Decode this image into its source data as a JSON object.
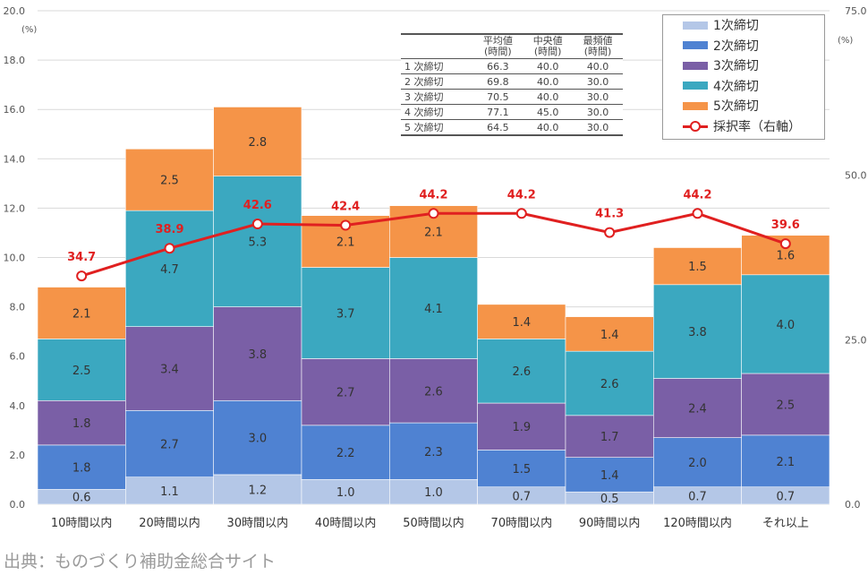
{
  "chart_data": {
    "type": "stacked-bar+line",
    "categories": [
      "10時間以内",
      "20時間以内",
      "30時間以内",
      "40時間以内",
      "50時間以内",
      "70時間以内",
      "90時間以内",
      "120時間以内",
      "それ以上"
    ],
    "series": [
      {
        "name": "1次締切",
        "color": "#b4c7e7",
        "values": [
          0.6,
          1.1,
          1.2,
          1.0,
          1.0,
          0.7,
          0.5,
          0.7,
          0.7
        ]
      },
      {
        "name": "2次締切",
        "color": "#4f82d2",
        "values": [
          1.8,
          2.7,
          3.0,
          2.2,
          2.3,
          1.5,
          1.4,
          2.0,
          2.1
        ]
      },
      {
        "name": "3次締切",
        "color": "#7a5fa6",
        "values": [
          1.8,
          3.4,
          3.8,
          2.7,
          2.6,
          1.9,
          1.7,
          2.4,
          2.5
        ]
      },
      {
        "name": "4次締切",
        "color": "#3ba8c0",
        "values": [
          2.5,
          4.7,
          5.3,
          3.7,
          4.1,
          2.6,
          2.6,
          3.8,
          4.0
        ]
      },
      {
        "name": "5次締切",
        "color": "#f59448",
        "values": [
          2.1,
          2.5,
          2.8,
          2.1,
          2.1,
          1.4,
          1.4,
          1.5,
          1.6
        ]
      }
    ],
    "line": {
      "name": "採択率（右軸）",
      "color": "#e02020",
      "axis": "right",
      "values": [
        34.7,
        38.9,
        42.6,
        42.4,
        44.2,
        44.2,
        41.3,
        44.2,
        39.6
      ]
    },
    "y_left": {
      "unit": "(%)",
      "range": [
        0,
        20
      ],
      "ticks": [
        "0.0",
        "2.0",
        "4.0",
        "6.0",
        "8.0",
        "10.0",
        "12.0",
        "14.0",
        "16.0",
        "18.0",
        "20.0"
      ]
    },
    "y_right": {
      "unit": "(%)",
      "range": [
        0,
        75
      ],
      "ticks": [
        "0.0",
        "25.0",
        "50.0",
        "75.0"
      ]
    },
    "grid": true,
    "legend_position": "top-right"
  },
  "table": {
    "headers": [
      [
        "",
        ""
      ],
      [
        "平均値",
        "(時間)"
      ],
      [
        "中央値",
        "(時間)"
      ],
      [
        "最頻値",
        "(時間)"
      ]
    ],
    "rows": [
      [
        "1 次締切",
        "66.3",
        "40.0",
        "40.0"
      ],
      [
        "2 次締切",
        "69.8",
        "40.0",
        "30.0"
      ],
      [
        "3 次締切",
        "70.5",
        "40.0",
        "30.0"
      ],
      [
        "4 次締切",
        "77.1",
        "45.0",
        "30.0"
      ],
      [
        "5 次締切",
        "64.5",
        "40.0",
        "30.0"
      ]
    ]
  },
  "source": "出典：ものづくり補助金総合サイト"
}
